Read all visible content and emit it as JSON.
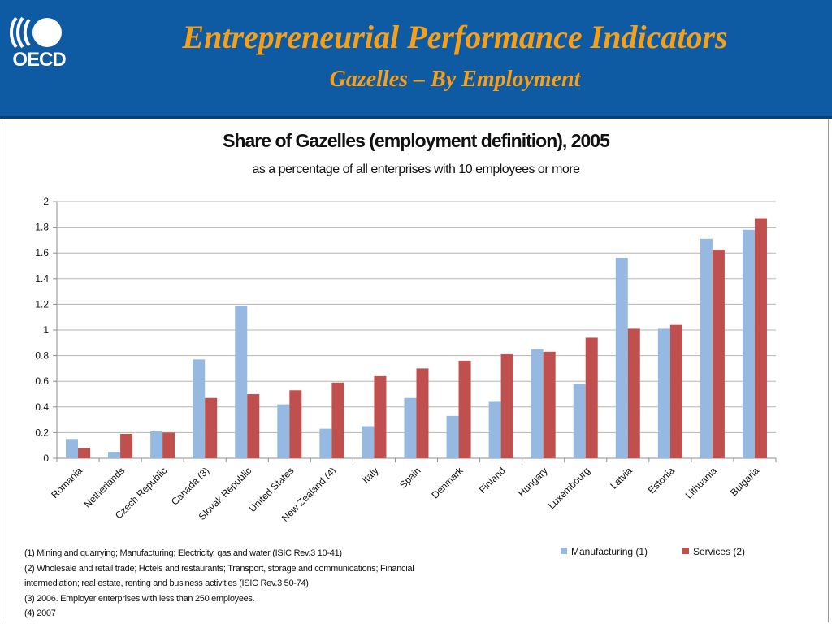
{
  "header": {
    "logo_text": "OECD",
    "title": "Entrepreneurial Performance Indicators",
    "subtitle": "Gazelles – By Employment"
  },
  "colors": {
    "header_bg": "#0e5aa3",
    "title": "#f6a01a",
    "manufacturing": "#95b9e0",
    "services": "#c0504d"
  },
  "chart_data": {
    "type": "bar",
    "title": "Share of Gazelles (employment definition), 2005",
    "subtitle": "as a percentage of all enterprises with 10 employees or more",
    "ylim": [
      0,
      2
    ],
    "yticks": [
      "0",
      "0.2",
      "0.4",
      "0.6",
      "0.8",
      "1",
      "1.2",
      "1.4",
      "1.6",
      "1.8",
      "2"
    ],
    "grid": true,
    "legend_position": "bottom-right",
    "categories": [
      "Romania",
      "Netherlands",
      "Czech Republic",
      "Canada (3)",
      "Slovak Republic",
      "United States",
      "New Zealand (4)",
      "Italy",
      "Spain",
      "Denmark",
      "Finland",
      "Hungary",
      "Luxembourg",
      "Latvia",
      "Estonia",
      "Lithuania",
      "Bulgaria"
    ],
    "series": [
      {
        "name": "Manufacturing (1)",
        "values": [
          0.15,
          0.05,
          0.21,
          0.77,
          1.19,
          0.42,
          0.23,
          0.25,
          0.47,
          0.33,
          0.44,
          0.85,
          0.58,
          1.56,
          1.01,
          1.71,
          1.78
        ]
      },
      {
        "name": "Services (2)",
        "values": [
          0.08,
          0.19,
          0.2,
          0.47,
          0.5,
          0.53,
          0.59,
          0.64,
          0.7,
          0.76,
          0.81,
          0.83,
          0.94,
          1.01,
          1.04,
          1.62,
          1.87
        ]
      }
    ]
  },
  "notes": [
    "(1) Mining and quarrying; Manufacturing; Electricity, gas and water (ISIC Rev.3 10-41)",
    "(2) Wholesale and retail trade; Hotels and restaurants; Transport, storage and communications; Financial",
    "intermediation; real estate, renting and business activities (ISIC Rev.3 50-74)",
    "(3) 2006. Employer enterprises with less than 250 employees.",
    "(4) 2007"
  ]
}
